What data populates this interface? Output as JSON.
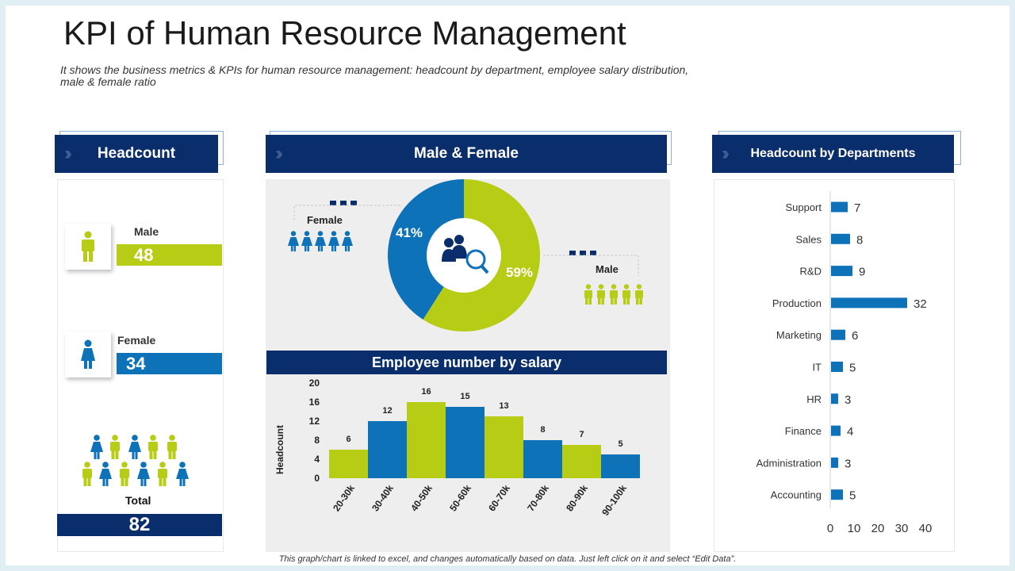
{
  "title": "KPI of Human Resource Management",
  "subtitle": "It shows the business metrics & KPIs for human resource management: headcount by department, employee salary distribution, male & female ratio",
  "footnote": "This graph/chart is linked to excel, and changes automatically based on data. Just left click on it and select “Edit Data”.",
  "colors": {
    "navy": "#0a2e6b",
    "blue": "#0e72b9",
    "lime": "#b7cc15"
  },
  "headcount": {
    "header": "Headcount",
    "male_label": "Male",
    "male_value": "48",
    "female_label": "Female",
    "female_value": "34",
    "total_label": "Total",
    "total_value": "82",
    "icons": {
      "male": "male-person-icon",
      "female": "female-person-icon",
      "group": "people-group-icon"
    }
  },
  "gender": {
    "header": "Male & Female",
    "female_label": "Female",
    "male_label": "Male",
    "female_pct": "41%",
    "male_pct": "59%",
    "center_icon": "people-search-icon"
  },
  "salary": {
    "header": "Employee number by salary"
  },
  "departments": {
    "header": "Headcount by Departments"
  },
  "chart_data": [
    {
      "type": "pie",
      "subtype": "donut",
      "title": "Male & Female",
      "slices": [
        {
          "label": "Female",
          "value": 41,
          "color": "#0e72b9"
        },
        {
          "label": "Male",
          "value": 59,
          "color": "#b7cc15"
        }
      ]
    },
    {
      "type": "bar",
      "title": "Employee number by salary",
      "xlabel": "",
      "ylabel": "Headcount",
      "categories": [
        "20-30k",
        "30-40k",
        "40-50k",
        "50-60k",
        "60-70k",
        "70-80k",
        "80-90k",
        "90-100k"
      ],
      "values": [
        6,
        12,
        16,
        15,
        13,
        8,
        7,
        5
      ],
      "bar_colors": [
        "#b7cc15",
        "#0e72b9",
        "#b7cc15",
        "#0e72b9",
        "#b7cc15",
        "#0e72b9",
        "#b7cc15",
        "#0e72b9"
      ],
      "yticks": [
        0,
        4,
        8,
        12,
        16,
        20
      ],
      "ylim": [
        0,
        20
      ],
      "grid": false
    },
    {
      "type": "bar",
      "orientation": "horizontal",
      "title": "Headcount by Departments",
      "categories": [
        "Support",
        "Sales",
        "R&D",
        "Production",
        "Marketing",
        "IT",
        "HR",
        "Finance",
        "Administration",
        "Accounting"
      ],
      "values": [
        7,
        8,
        9,
        32,
        6,
        5,
        3,
        4,
        3,
        5
      ],
      "xticks": [
        0,
        10,
        20,
        30,
        40
      ],
      "xlim": [
        0,
        40
      ],
      "color": "#0e72b9",
      "grid": false
    }
  ]
}
